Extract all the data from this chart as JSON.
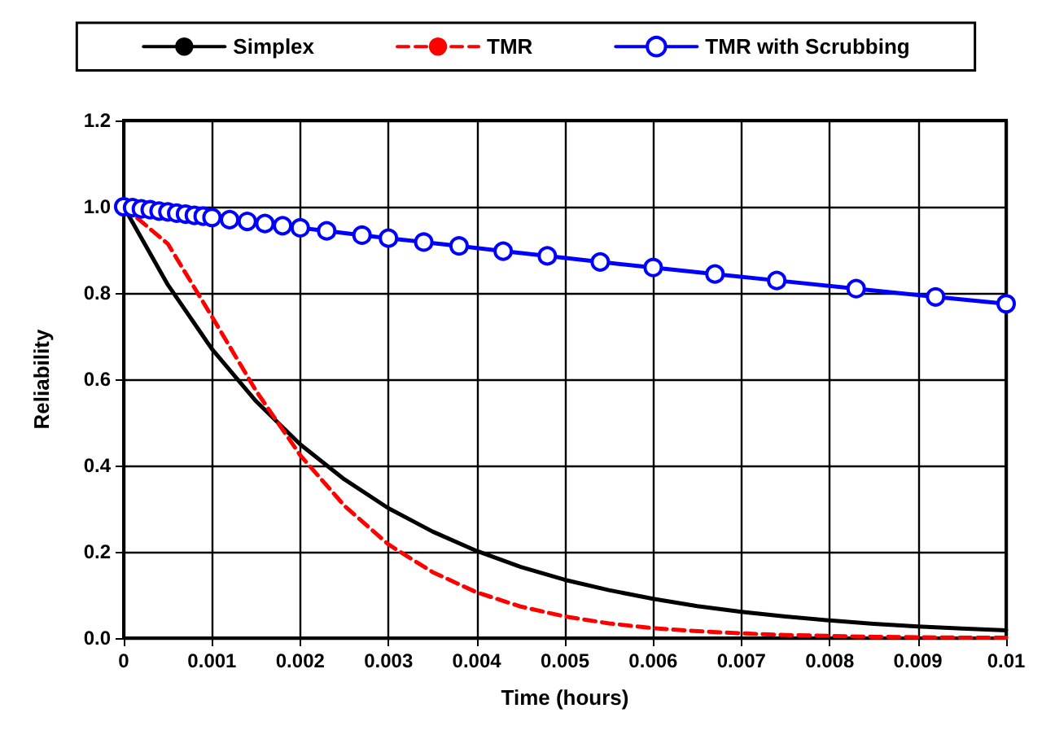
{
  "chart_data": {
    "type": "line",
    "xlabel": "Time (hours)",
    "ylabel": "Reliability",
    "xlim": [
      0,
      0.01
    ],
    "ylim": [
      0,
      1.2
    ],
    "xticks": [
      0,
      0.001,
      0.002,
      0.003,
      0.004,
      0.005,
      0.006,
      0.007,
      0.008,
      0.009,
      0.01
    ],
    "yticks": [
      {
        "value": 0,
        "label": "0.0"
      },
      0.2,
      0.4,
      0.6,
      0.8,
      {
        "value": 1,
        "label": "1.0"
      },
      1.2
    ],
    "grid": true,
    "legend": "top",
    "series": [
      {
        "name": "Simplex",
        "color": "#000000",
        "line_style": "solid",
        "marker": "none",
        "x": [
          0,
          0.0005,
          0.001,
          0.0015,
          0.002,
          0.0025,
          0.003,
          0.0035,
          0.004,
          0.0045,
          0.005,
          0.0055,
          0.006,
          0.0065,
          0.007,
          0.0075,
          0.008,
          0.0085,
          0.009,
          0.0095,
          0.01
        ],
        "values": [
          1,
          0.819,
          0.67,
          0.549,
          0.449,
          0.368,
          0.301,
          0.247,
          0.202,
          0.165,
          0.135,
          0.111,
          0.091,
          0.074,
          0.061,
          0.05,
          0.041,
          0.033,
          0.027,
          0.022,
          0.018
        ]
      },
      {
        "name": "TMR",
        "color": "#ff0000",
        "line_style": "dashed",
        "marker": "none",
        "x": [
          0,
          0.0005,
          0.001,
          0.0015,
          0.002,
          0.0025,
          0.003,
          0.0035,
          0.004,
          0.0045,
          0.005,
          0.0055,
          0.006,
          0.0065,
          0.007,
          0.0075,
          0.008,
          0.0085,
          0.009,
          0.0095,
          0.01
        ],
        "values": [
          1,
          0.914,
          0.745,
          0.573,
          0.424,
          0.307,
          0.217,
          0.153,
          0.106,
          0.073,
          0.05,
          0.034,
          0.023,
          0.016,
          0.011,
          0.007,
          0.005,
          0.003,
          0.002,
          0.001,
          0.001
        ]
      },
      {
        "name": "TMR with Scrubbing",
        "color": "#0000ff",
        "line_style": "solid",
        "marker": "circle",
        "x": [
          0,
          0.0001,
          0.0002,
          0.0003,
          0.0004,
          0.0005,
          0.0006,
          0.0007,
          0.0008,
          0.0009,
          0.001,
          0.0012,
          0.0014,
          0.0016,
          0.0018,
          0.002,
          0.0023,
          0.0027,
          0.003,
          0.0034,
          0.0038,
          0.0043,
          0.0048,
          0.0054,
          0.006,
          0.0067,
          0.0074,
          0.0083,
          0.0092,
          0.01
        ],
        "values": [
          1,
          0.998,
          0.995,
          0.993,
          0.99,
          0.988,
          0.985,
          0.983,
          0.98,
          0.978,
          0.975,
          0.97,
          0.966,
          0.961,
          0.956,
          0.951,
          0.944,
          0.934,
          0.927,
          0.918,
          0.909,
          0.897,
          0.886,
          0.872,
          0.859,
          0.844,
          0.829,
          0.81,
          0.791,
          0.775
        ]
      }
    ]
  }
}
